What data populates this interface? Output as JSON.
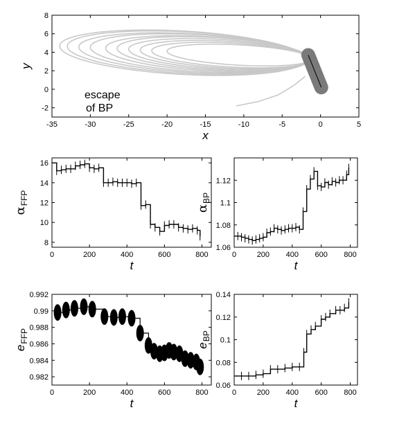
{
  "chart_data": [
    {
      "id": "orbit",
      "type": "line",
      "xlabel": "x",
      "ylabel": "y",
      "xlim": [
        -35,
        5
      ],
      "ylim": [
        -3,
        8
      ],
      "xticks": [
        -35,
        -30,
        -25,
        -20,
        -15,
        -10,
        -5,
        0,
        5
      ],
      "yticks": [
        -2,
        0,
        2,
        4,
        6,
        8
      ],
      "annotation_lines": [
        "escape",
        "of BP"
      ],
      "orbit_color": "#c8c8c8",
      "body_color": "#7a7a7a",
      "body": {
        "x1": -1.6,
        "y1": 3.7,
        "x2": 0.1,
        "y2": 0.2
      },
      "orbit_loops": [
        {
          "xmin": -34.0,
          "xmax": -2.0,
          "top": 6.3,
          "bottom": 1.6
        },
        {
          "xmin": -33.0,
          "xmax": -1.8,
          "top": 6.2,
          "bottom": 1.7
        },
        {
          "xmin": -31.5,
          "xmax": -1.6,
          "top": 6.0,
          "bottom": 1.8
        },
        {
          "xmin": -30.0,
          "xmax": -1.6,
          "top": 5.9,
          "bottom": 1.9
        },
        {
          "xmin": -28.0,
          "xmax": -1.5,
          "top": 5.7,
          "bottom": 2.0
        },
        {
          "xmin": -26.5,
          "xmax": -1.4,
          "top": 5.6,
          "bottom": 2.1
        },
        {
          "xmin": -25.0,
          "xmax": -1.4,
          "top": 5.4,
          "bottom": 2.2
        },
        {
          "xmin": -23.5,
          "xmax": -1.3,
          "top": 5.2,
          "bottom": 2.3
        },
        {
          "xmin": -22.0,
          "xmax": -1.2,
          "top": 5.0,
          "bottom": 2.4
        },
        {
          "xmin": -20.0,
          "xmax": -1.2,
          "top": 4.8,
          "bottom": 2.6
        }
      ],
      "escape_path": [
        [
          -2.0,
          1.4
        ],
        [
          -3.5,
          0.4
        ],
        [
          -5.5,
          -0.6
        ],
        [
          -8.0,
          -1.3
        ],
        [
          -11.0,
          -1.8
        ]
      ]
    },
    {
      "id": "alpha-ffp",
      "type": "line",
      "xlabel": "t",
      "ylabel": "α",
      "ylabel_sub": "FFP",
      "xlim": [
        0,
        850
      ],
      "ylim": [
        7.5,
        16.5
      ],
      "xticks": [
        0,
        200,
        400,
        600,
        800
      ],
      "yticks": [
        8,
        10,
        12,
        14,
        16
      ],
      "x": [
        0,
        25,
        50,
        75,
        100,
        125,
        150,
        175,
        200,
        225,
        250,
        275,
        300,
        325,
        350,
        375,
        400,
        425,
        450,
        475,
        500,
        525,
        550,
        575,
        600,
        625,
        650,
        675,
        700,
        725,
        750,
        775,
        790
      ],
      "values": [
        16.0,
        15.2,
        15.3,
        15.4,
        15.4,
        15.7,
        15.8,
        15.9,
        15.5,
        15.4,
        15.5,
        14.0,
        14.0,
        14.1,
        14.0,
        14.0,
        14.0,
        13.9,
        14.0,
        11.7,
        11.8,
        9.8,
        9.5,
        9.1,
        9.7,
        9.8,
        9.8,
        9.5,
        9.4,
        9.3,
        9.4,
        9.2,
        8.6
      ]
    },
    {
      "id": "alpha-bp",
      "type": "line",
      "xlabel": "t",
      "ylabel": "α",
      "ylabel_sub": "BP",
      "xlim": [
        0,
        850
      ],
      "ylim": [
        1.06,
        1.14
      ],
      "xticks": [
        0,
        200,
        400,
        600,
        800
      ],
      "yticks": [
        1.06,
        1.08,
        1.1,
        1.12
      ],
      "x": [
        0,
        25,
        50,
        75,
        100,
        125,
        150,
        175,
        200,
        225,
        250,
        275,
        300,
        325,
        350,
        375,
        400,
        425,
        450,
        475,
        500,
        525,
        550,
        575,
        600,
        625,
        650,
        675,
        700,
        725,
        750,
        775,
        790
      ],
      "values": [
        1.07,
        1.07,
        1.069,
        1.068,
        1.067,
        1.066,
        1.067,
        1.068,
        1.069,
        1.073,
        1.074,
        1.077,
        1.076,
        1.075,
        1.076,
        1.077,
        1.077,
        1.078,
        1.076,
        1.092,
        1.112,
        1.121,
        1.128,
        1.115,
        1.114,
        1.118,
        1.116,
        1.119,
        1.118,
        1.12,
        1.12,
        1.125,
        1.131
      ]
    },
    {
      "id": "e-ffp",
      "type": "line",
      "xlabel": "t",
      "ylabel": "e",
      "ylabel_sub": "FFP",
      "xlim": [
        0,
        850
      ],
      "ylim": [
        0.981,
        0.992
      ],
      "xticks": [
        0,
        200,
        400,
        600,
        800
      ],
      "yticks": [
        0.982,
        0.984,
        0.986,
        0.988,
        0.99,
        0.992
      ],
      "x": [
        30,
        75,
        120,
        170,
        215,
        280,
        330,
        375,
        425,
        470,
        515,
        545,
        575,
        600,
        625,
        650,
        680,
        710,
        740,
        770,
        790
      ],
      "values": [
        0.9898,
        0.9901,
        0.9903,
        0.9905,
        0.9902,
        0.9893,
        0.9892,
        0.9893,
        0.9891,
        0.9873,
        0.9858,
        0.9851,
        0.9848,
        0.9849,
        0.9852,
        0.985,
        0.9848,
        0.9842,
        0.984,
        0.9838,
        0.9832
      ]
    },
    {
      "id": "e-bp",
      "type": "line",
      "xlabel": "t",
      "ylabel": "e",
      "ylabel_sub": "BP",
      "xlim": [
        0,
        850
      ],
      "ylim": [
        0.06,
        0.14
      ],
      "xticks": [
        0,
        200,
        400,
        600,
        800
      ],
      "yticks": [
        0.06,
        0.08,
        0.1,
        0.12,
        0.14
      ],
      "x": [
        0,
        50,
        100,
        150,
        200,
        250,
        300,
        350,
        400,
        450,
        480,
        500,
        530,
        560,
        600,
        630,
        660,
        700,
        730,
        760,
        790
      ],
      "values": [
        0.068,
        0.068,
        0.068,
        0.069,
        0.07,
        0.074,
        0.074,
        0.075,
        0.076,
        0.076,
        0.089,
        0.105,
        0.109,
        0.112,
        0.118,
        0.12,
        0.123,
        0.126,
        0.126,
        0.128,
        0.133
      ]
    }
  ]
}
